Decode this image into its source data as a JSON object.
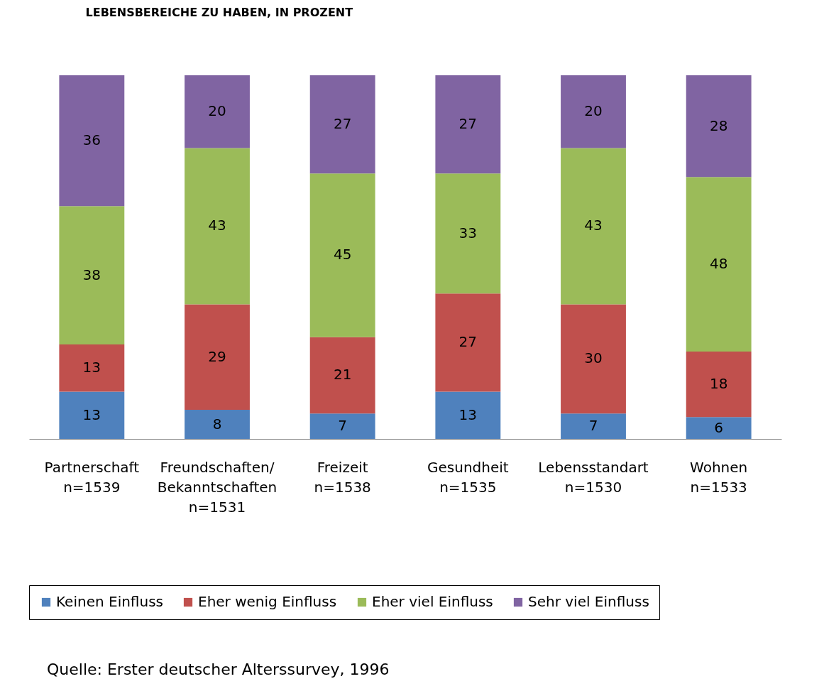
{
  "chart_data": {
    "type": "bar",
    "stacked": true,
    "data_labels": true,
    "legend": "bottom",
    "title": "LEBENSBEREICHE ZU HABEN, IN PROZENT",
    "categories": [
      "Partnerschaft\nn=1539",
      "Freundschaften/\nBekanntschaften\nn=1531",
      "Freizeit\nn=1538",
      "Gesundheit\nn=1535",
      "Lebensstandart\nn=1530",
      "Wohnen\nn=1533"
    ],
    "ylim": [
      0,
      100
    ],
    "series": [
      {
        "name": "Keinen Einfluss",
        "color": "#4f81bd",
        "values": [
          13,
          8,
          7,
          13,
          7,
          6
        ]
      },
      {
        "name": "Eher wenig Einfluss",
        "color": "#c0504d",
        "values": [
          13,
          29,
          21,
          27,
          30,
          18
        ]
      },
      {
        "name": "Eher viel Einfluss",
        "color": "#9bbb59",
        "values": [
          38,
          43,
          45,
          33,
          43,
          48
        ]
      },
      {
        "name": "Sehr viel Einfluss",
        "color": "#8064a2",
        "values": [
          36,
          20,
          27,
          27,
          20,
          28
        ]
      }
    ],
    "annotations": [
      "Quelle: Erster deutscher Alterssurvey, 1996"
    ]
  }
}
